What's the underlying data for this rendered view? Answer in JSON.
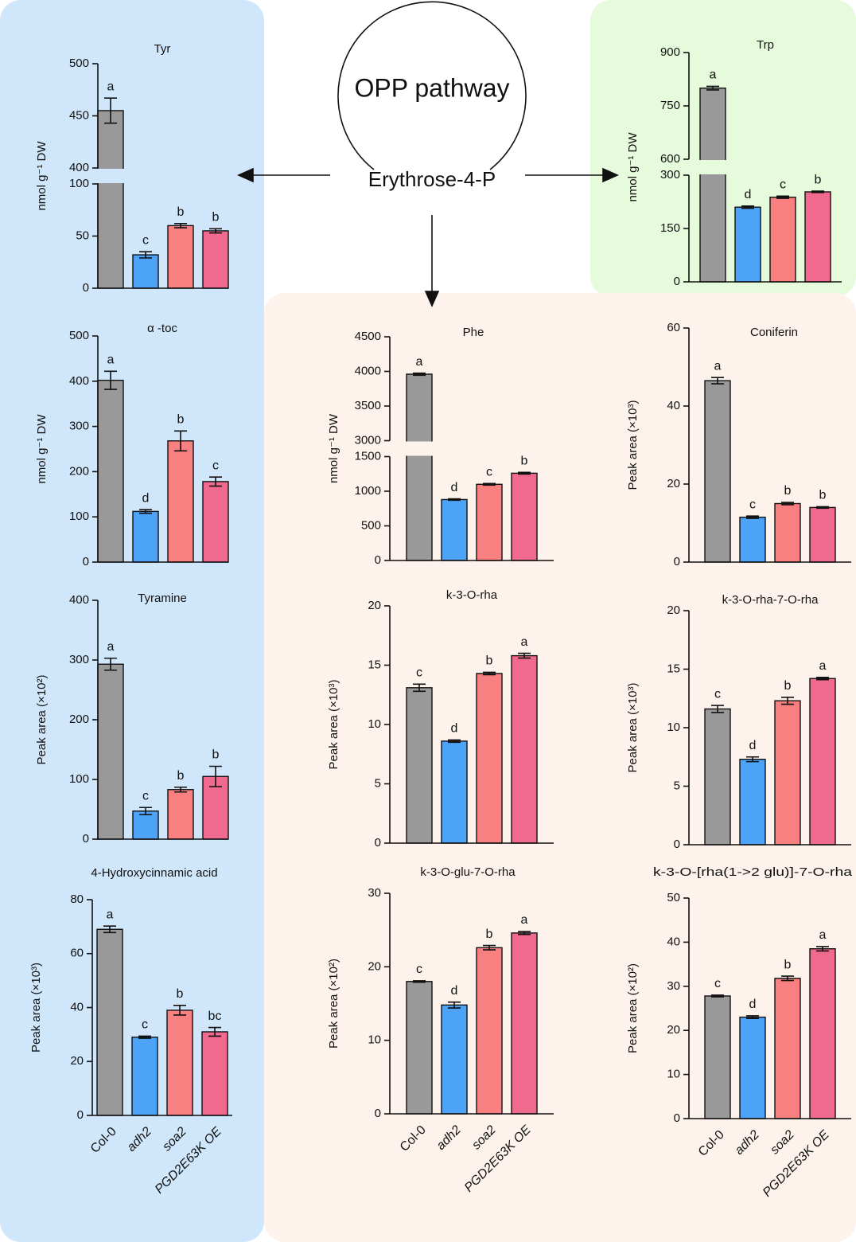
{
  "diagram": {
    "circle_label": "OPP pathway",
    "node": "Erythrose-4-P"
  },
  "chart_data": [
    {
      "type": "bar",
      "title": "Tyr",
      "ylabel": "nmol g⁻¹ DW",
      "values": [
        455,
        32,
        60,
        55
      ],
      "errors": [
        12,
        3,
        2,
        2
      ],
      "annotations": [
        "a",
        "c",
        "b",
        "b"
      ],
      "colors": [
        "#999999",
        "#4da3f7",
        "#f98080",
        "#f06a90"
      ],
      "ylim": [
        0,
        500
      ],
      "ybreak": [
        100,
        400
      ],
      "yticks": [
        0,
        50,
        100,
        400,
        450,
        500
      ]
    },
    {
      "type": "bar",
      "title": "α -toc",
      "ylabel": "nmol g⁻¹ DW",
      "values": [
        402,
        112,
        268,
        178
      ],
      "errors": [
        20,
        4,
        22,
        10
      ],
      "annotations": [
        "a",
        "d",
        "b",
        "c"
      ],
      "colors": [
        "#999999",
        "#4da3f7",
        "#f98080",
        "#f06a90"
      ],
      "ylim": [
        0,
        500
      ],
      "yticks": [
        0,
        100,
        200,
        300,
        400,
        500
      ]
    },
    {
      "type": "bar",
      "title": "Tyramine",
      "ylabel": "Peak area (×10²)",
      "values": [
        293,
        47,
        83,
        105
      ],
      "errors": [
        10,
        6,
        4,
        17
      ],
      "annotations": [
        "a",
        "c",
        "b",
        "b"
      ],
      "colors": [
        "#999999",
        "#4da3f7",
        "#f98080",
        "#f06a90"
      ],
      "ylim": [
        0,
        400
      ],
      "yticks": [
        0,
        100,
        200,
        300,
        400
      ]
    },
    {
      "type": "bar",
      "title": "4-Hydroxycinnamic acid",
      "ylabel": "Peak area (×10³)",
      "categories": [
        "Col-0",
        "adh2",
        "soa2",
        "PGD2E63K OE"
      ],
      "values": [
        69,
        29,
        39,
        31
      ],
      "errors": [
        1.2,
        0.4,
        1.8,
        1.6
      ],
      "annotations": [
        "a",
        "c",
        "b",
        "bc"
      ],
      "colors": [
        "#999999",
        "#4da3f7",
        "#f98080",
        "#f06a90"
      ],
      "ylim": [
        0,
        80
      ],
      "yticks": [
        0,
        20,
        40,
        60,
        80
      ]
    },
    {
      "type": "bar",
      "title": "Trp",
      "ylabel": "nmol g⁻¹ DW",
      "values": [
        800,
        210,
        238,
        253
      ],
      "errors": [
        5,
        3,
        3,
        2
      ],
      "annotations": [
        "a",
        "d",
        "c",
        "b"
      ],
      "colors": [
        "#999999",
        "#4da3f7",
        "#f98080",
        "#f06a90"
      ],
      "ylim": [
        0,
        900
      ],
      "ybreak": [
        300,
        600
      ],
      "yticks": [
        0,
        150,
        300,
        600,
        750,
        900
      ]
    },
    {
      "type": "bar",
      "title": "Phe",
      "ylabel": "nmol g⁻¹ DW",
      "values": [
        3960,
        880,
        1100,
        1260
      ],
      "errors": [
        15,
        10,
        12,
        12
      ],
      "annotations": [
        "a",
        "d",
        "c",
        "b"
      ],
      "colors": [
        "#999999",
        "#4da3f7",
        "#f98080",
        "#f06a90"
      ],
      "ylim": [
        0,
        4500
      ],
      "ybreak": [
        1500,
        3000
      ],
      "yticks": [
        0,
        500,
        1000,
        1500,
        3000,
        3500,
        4000,
        4500
      ]
    },
    {
      "type": "bar",
      "title": "Coniferin",
      "ylabel": "Peak area (×10³)",
      "values": [
        46.5,
        11.5,
        15,
        14
      ],
      "errors": [
        0.8,
        0.3,
        0.3,
        0.2
      ],
      "annotations": [
        "a",
        "c",
        "b",
        "b"
      ],
      "colors": [
        "#999999",
        "#4da3f7",
        "#f98080",
        "#f06a90"
      ],
      "ylim": [
        0,
        60
      ],
      "yticks": [
        0,
        20,
        40,
        60
      ]
    },
    {
      "type": "bar",
      "title": "k-3-O-rha",
      "ylabel": "Peak area (×10³)",
      "values": [
        13.1,
        8.6,
        14.3,
        15.8
      ],
      "errors": [
        0.3,
        0.1,
        0.1,
        0.2
      ],
      "annotations": [
        "c",
        "d",
        "b",
        "a"
      ],
      "colors": [
        "#999999",
        "#4da3f7",
        "#f98080",
        "#f06a90"
      ],
      "ylim": [
        0,
        20
      ],
      "yticks": [
        0,
        5,
        10,
        15,
        20
      ]
    },
    {
      "type": "bar",
      "title": "k-3-O-rha-7-O-rha",
      "ylabel": "Peak area (×10³)",
      "values": [
        11.6,
        7.3,
        12.3,
        14.2
      ],
      "errors": [
        0.3,
        0.2,
        0.3,
        0.1
      ],
      "annotations": [
        "c",
        "d",
        "b",
        "a"
      ],
      "colors": [
        "#999999",
        "#4da3f7",
        "#f98080",
        "#f06a90"
      ],
      "ylim": [
        0,
        20
      ],
      "yticks": [
        0,
        5,
        10,
        15,
        20
      ]
    },
    {
      "type": "bar",
      "title": "k-3-O-glu-7-O-rha",
      "ylabel": "Peak area (×10²)",
      "categories": [
        "Col-0",
        "adh2",
        "soa2",
        "PGD2E63K OE"
      ],
      "values": [
        18,
        14.8,
        22.6,
        24.6
      ],
      "errors": [
        0.1,
        0.4,
        0.3,
        0.2
      ],
      "annotations": [
        "c",
        "d",
        "b",
        "a"
      ],
      "colors": [
        "#999999",
        "#4da3f7",
        "#f98080",
        "#f06a90"
      ],
      "ylim": [
        0,
        30
      ],
      "yticks": [
        0,
        10,
        20,
        30
      ]
    },
    {
      "type": "bar",
      "title": "k-3-O-[rha(1->2 glu)]-7-O-rha",
      "ylabel": "Peak area (×10²)",
      "categories": [
        "Col-0",
        "adh2",
        "soa2",
        "PGD2E63K OE"
      ],
      "values": [
        27.8,
        23,
        31.8,
        38.5
      ],
      "errors": [
        0.2,
        0.3,
        0.5,
        0.5
      ],
      "annotations": [
        "c",
        "d",
        "b",
        "a"
      ],
      "colors": [
        "#999999",
        "#4da3f7",
        "#f98080",
        "#f06a90"
      ],
      "ylim": [
        0,
        50
      ],
      "yticks": [
        0,
        10,
        20,
        30,
        40,
        50
      ]
    }
  ]
}
